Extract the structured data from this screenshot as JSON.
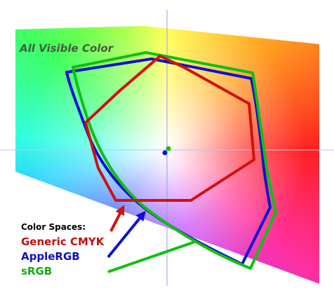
{
  "title": "All Visible Color",
  "legend": {
    "heading": "Color Spaces:",
    "items": [
      "Generic CMYK",
      "AppleRGB",
      "sRGB"
    ]
  }
}
